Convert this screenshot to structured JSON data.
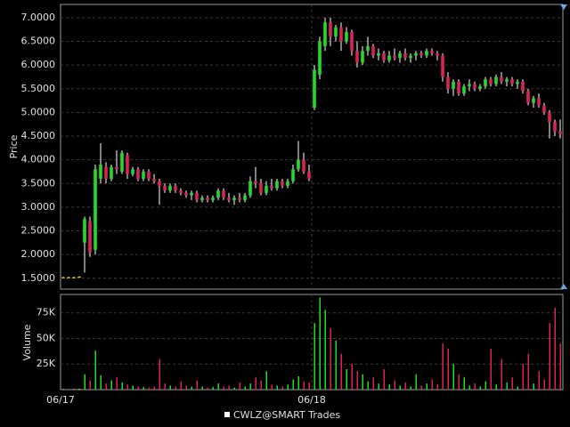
{
  "chart_data": {
    "type": "candlestick",
    "ylabel": "Price",
    "volume_label": "Volume",
    "grid": true,
    "up_color": "#22dd22",
    "down_color": "#dd2255",
    "flat_color": "#ffff00",
    "ylim": [
      1.27,
      7.28
    ],
    "yticks": [
      {
        "value": 1.5,
        "label": "1.5000"
      },
      {
        "value": 2.0,
        "label": "2.0000"
      },
      {
        "value": 2.5,
        "label": "2.5000"
      },
      {
        "value": 3.0,
        "label": "3.0000"
      },
      {
        "value": 3.5,
        "label": "3.5000"
      },
      {
        "value": 4.0,
        "label": "4.0000"
      },
      {
        "value": 4.5,
        "label": "4.5000"
      },
      {
        "value": 5.0,
        "label": "5.0000"
      },
      {
        "value": 5.5,
        "label": "5.5000"
      },
      {
        "value": 6.0,
        "label": "6.0000"
      },
      {
        "value": 6.5,
        "label": "6.5000"
      },
      {
        "value": 7.0,
        "label": "7.0000"
      }
    ],
    "volume_ylim": [
      0,
      93000
    ],
    "volume_yticks": [
      {
        "value": 25000,
        "label": "25K"
      },
      {
        "value": 50000,
        "label": "50K"
      },
      {
        "value": 75000,
        "label": "75K"
      }
    ],
    "categories": [
      "06/17",
      null,
      null,
      null,
      null,
      null,
      null,
      null,
      null,
      null,
      null,
      null,
      null,
      null,
      null,
      null,
      null,
      null,
      null,
      null,
      null,
      null,
      null,
      null,
      null,
      null,
      null,
      null,
      null,
      null,
      null,
      null,
      null,
      null,
      null,
      null,
      null,
      null,
      null,
      null,
      null,
      null,
      null,
      null,
      null,
      null,
      null,
      "06/18",
      null,
      null,
      null,
      null,
      null,
      null,
      null,
      null,
      null,
      null,
      null,
      null,
      null,
      null,
      null,
      null,
      null,
      null,
      null,
      null,
      null,
      null,
      null,
      null,
      null,
      null,
      null,
      null,
      null,
      null,
      null,
      null,
      null,
      null,
      null,
      null,
      null,
      null,
      null,
      null,
      null,
      null,
      null,
      null,
      null,
      null
    ],
    "series": [
      {
        "name": "CWLZ@SMART Trades",
        "open": [
          1.52,
          1.52,
          1.52,
          1.53,
          2.25,
          2.7,
          2.1,
          3.6,
          3.85,
          3.6,
          3.85,
          3.75,
          4.1,
          3.7,
          3.8,
          3.6,
          3.75,
          3.6,
          3.55,
          3.45,
          3.35,
          3.45,
          3.35,
          3.3,
          3.25,
          3.3,
          3.15,
          3.2,
          3.15,
          3.2,
          3.35,
          3.2,
          3.15,
          3.2,
          3.15,
          3.25,
          3.55,
          3.5,
          3.3,
          3.45,
          3.4,
          3.55,
          3.45,
          3.55,
          3.8,
          4.0,
          3.75,
          5.1,
          5.8,
          6.4,
          6.9,
          6.6,
          6.8,
          6.5,
          6.7,
          6.3,
          6.05,
          6.3,
          6.4,
          6.2,
          6.25,
          6.1,
          6.2,
          6.15,
          6.25,
          6.15,
          6.2,
          6.25,
          6.2,
          6.3,
          6.25,
          6.2,
          5.75,
          5.5,
          5.65,
          5.4,
          5.55,
          5.6,
          5.5,
          5.55,
          5.7,
          5.6,
          5.75,
          5.65,
          5.7,
          5.6,
          5.65,
          5.45,
          5.2,
          5.3,
          5.15,
          5.0,
          4.8,
          4.6
        ],
        "high": [
          1.53,
          1.53,
          1.53,
          1.54,
          2.8,
          2.8,
          3.9,
          4.35,
          3.95,
          3.9,
          4.2,
          4.2,
          4.15,
          3.85,
          3.85,
          3.8,
          3.8,
          3.7,
          3.6,
          3.5,
          3.5,
          3.5,
          3.4,
          3.35,
          3.35,
          3.35,
          3.25,
          3.25,
          3.25,
          3.4,
          3.4,
          3.3,
          3.25,
          3.3,
          3.3,
          3.65,
          3.85,
          3.6,
          3.55,
          3.6,
          3.6,
          3.6,
          3.6,
          3.9,
          4.4,
          4.15,
          3.9,
          6.0,
          6.6,
          7.0,
          7.0,
          6.85,
          6.9,
          6.8,
          6.75,
          6.5,
          6.4,
          6.6,
          6.45,
          6.35,
          6.3,
          6.3,
          6.35,
          6.3,
          6.35,
          6.25,
          6.3,
          6.3,
          6.35,
          6.35,
          6.3,
          6.25,
          5.85,
          5.7,
          5.7,
          5.6,
          5.7,
          5.65,
          5.6,
          5.75,
          5.75,
          5.8,
          5.85,
          5.75,
          5.75,
          5.7,
          5.7,
          5.5,
          5.35,
          5.4,
          5.2,
          5.05,
          4.85,
          4.85
        ],
        "low": [
          1.51,
          1.51,
          1.51,
          1.52,
          1.62,
          1.95,
          2.0,
          3.5,
          3.5,
          3.55,
          3.7,
          3.7,
          3.6,
          3.65,
          3.55,
          3.55,
          3.55,
          3.5,
          3.05,
          3.3,
          3.3,
          3.3,
          3.25,
          3.2,
          3.15,
          3.1,
          3.1,
          3.1,
          3.1,
          3.15,
          3.15,
          3.1,
          3.05,
          3.1,
          3.1,
          3.2,
          3.4,
          3.25,
          3.25,
          3.35,
          3.35,
          3.4,
          3.4,
          3.5,
          3.75,
          3.7,
          3.55,
          5.05,
          5.7,
          6.3,
          6.4,
          6.5,
          6.3,
          6.45,
          6.2,
          5.95,
          6.0,
          6.2,
          6.15,
          6.1,
          6.05,
          6.05,
          6.1,
          6.05,
          6.1,
          6.05,
          6.1,
          6.15,
          6.15,
          6.2,
          6.1,
          5.65,
          5.4,
          5.35,
          5.35,
          5.35,
          5.45,
          5.45,
          5.45,
          5.5,
          5.55,
          5.55,
          5.6,
          5.55,
          5.55,
          5.5,
          5.4,
          5.15,
          5.1,
          5.1,
          4.95,
          4.45,
          4.5,
          4.45
        ],
        "close": [
          1.52,
          1.52,
          1.52,
          1.53,
          2.75,
          2.05,
          3.8,
          3.9,
          3.6,
          3.85,
          3.8,
          4.15,
          3.7,
          3.8,
          3.6,
          3.75,
          3.6,
          3.55,
          3.45,
          3.35,
          3.45,
          3.35,
          3.3,
          3.25,
          3.3,
          3.15,
          3.2,
          3.15,
          3.2,
          3.35,
          3.2,
          3.15,
          3.2,
          3.15,
          3.25,
          3.55,
          3.5,
          3.3,
          3.45,
          3.4,
          3.55,
          3.45,
          3.55,
          3.8,
          4.0,
          3.75,
          3.6,
          5.9,
          6.5,
          6.9,
          6.6,
          6.8,
          6.5,
          6.7,
          6.3,
          6.05,
          6.3,
          6.4,
          6.2,
          6.25,
          6.1,
          6.2,
          6.15,
          6.25,
          6.15,
          6.2,
          6.25,
          6.2,
          6.3,
          6.25,
          6.2,
          5.75,
          5.5,
          5.65,
          5.4,
          5.55,
          5.6,
          5.5,
          5.55,
          5.7,
          5.6,
          5.75,
          5.65,
          5.7,
          5.6,
          5.65,
          5.45,
          5.2,
          5.3,
          5.15,
          5.0,
          4.8,
          4.6,
          4.55
        ],
        "volume": [
          500,
          400,
          600,
          800,
          15000,
          9000,
          38000,
          14000,
          6000,
          9000,
          12000,
          7000,
          5000,
          4000,
          3000,
          2500,
          2000,
          3000,
          30000,
          6000,
          4000,
          3000,
          8000,
          4000,
          3000,
          9000,
          3000,
          2000,
          2500,
          6000,
          3000,
          4000,
          2000,
          7000,
          3000,
          6000,
          12000,
          9000,
          18000,
          5000,
          4000,
          3000,
          5000,
          10000,
          13000,
          8000,
          7000,
          65000,
          90000,
          78000,
          60000,
          48000,
          35000,
          20000,
          25000,
          18000,
          15000,
          8000,
          12000,
          6000,
          20000,
          5000,
          9000,
          4000,
          7000,
          3000,
          15000,
          4000,
          6000,
          10000,
          5000,
          45000,
          40000,
          25000,
          15000,
          12000,
          4000,
          6000,
          3000,
          8000,
          40000,
          5000,
          30000,
          7000,
          12000,
          3000,
          25000,
          35000,
          6000,
          18000,
          10000,
          65000,
          80000,
          45000
        ]
      }
    ]
  }
}
